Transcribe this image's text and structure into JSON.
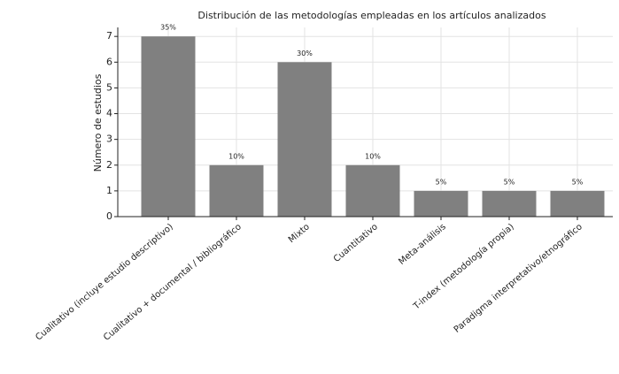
{
  "chart_data": {
    "type": "bar",
    "title": "Distribución de las metodologías empleadas en los artículos analizados",
    "ylabel": "Número de estudios",
    "categories": [
      "Cualitativo (incluye estudio descriptivo)",
      "Cualitativo + documental / bibliográfico",
      "Mixto",
      "Cuantitativo",
      "Meta-análisis",
      "T-index (metodología propia)",
      "Paradigma interpretativo/etnográfico"
    ],
    "values": [
      7,
      2,
      6,
      2,
      1,
      1,
      1
    ],
    "value_labels": [
      "35%",
      "10%",
      "30%",
      "10%",
      "5%",
      "5%",
      "5%"
    ],
    "color": "#808080",
    "ylim": [
      0,
      7.35
    ],
    "yticks": [
      0,
      1,
      2,
      3,
      4,
      5,
      6,
      7
    ],
    "grid": true
  }
}
